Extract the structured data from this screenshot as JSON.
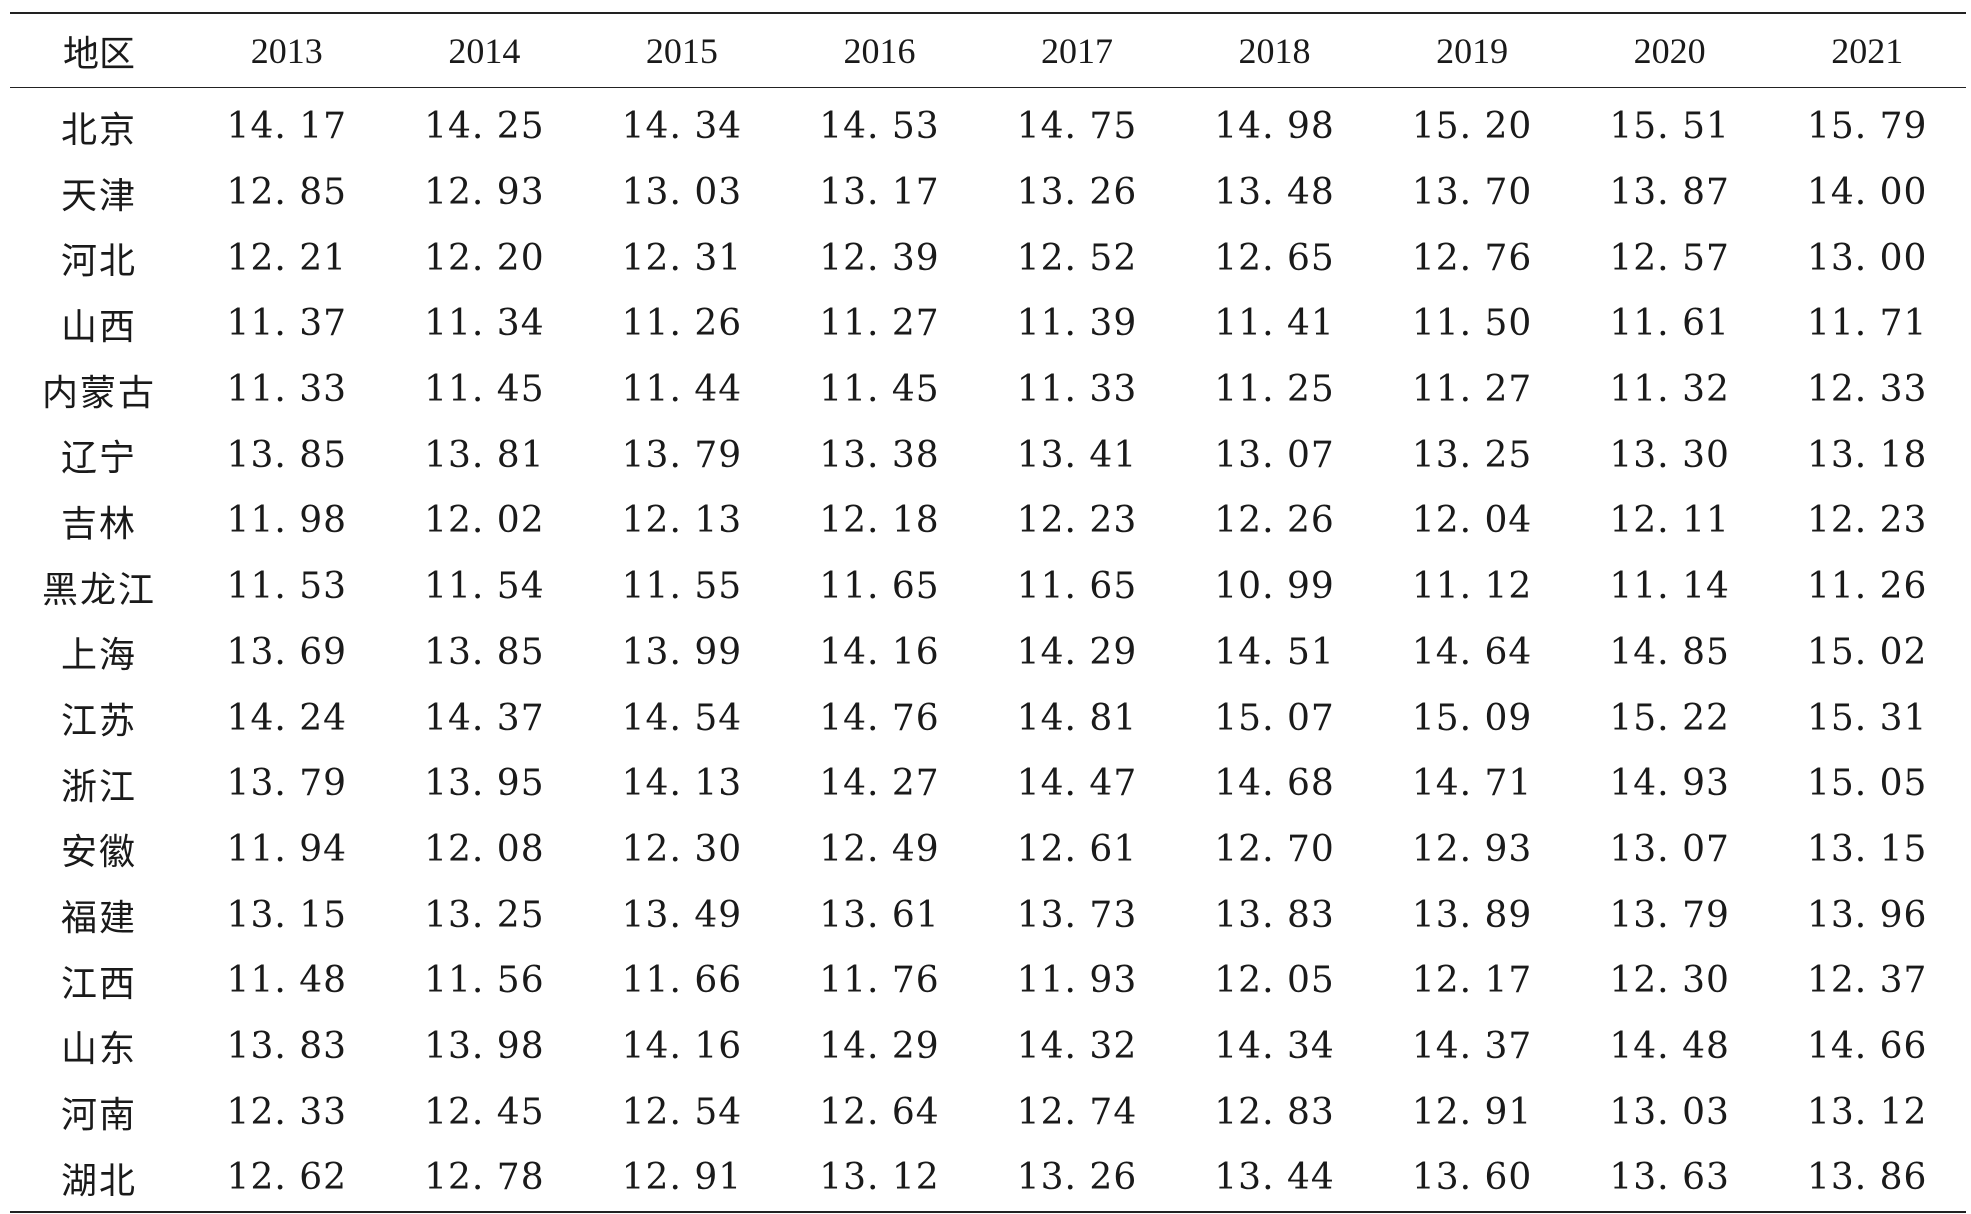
{
  "header": {
    "region_label": "地区",
    "years": [
      "2013",
      "2014",
      "2015",
      "2016",
      "2017",
      "2018",
      "2019",
      "2020",
      "2021"
    ]
  },
  "rows": [
    {
      "region": "北京",
      "values": [
        "14. 17",
        "14. 25",
        "14. 34",
        "14. 53",
        "14. 75",
        "14. 98",
        "15. 20",
        "15. 51",
        "15. 79"
      ]
    },
    {
      "region": "天津",
      "values": [
        "12. 85",
        "12. 93",
        "13. 03",
        "13. 17",
        "13. 26",
        "13. 48",
        "13. 70",
        "13. 87",
        "14. 00"
      ]
    },
    {
      "region": "河北",
      "values": [
        "12. 21",
        "12. 20",
        "12. 31",
        "12. 39",
        "12. 52",
        "12. 65",
        "12. 76",
        "12. 57",
        "13. 00"
      ]
    },
    {
      "region": "山西",
      "values": [
        "11. 37",
        "11. 34",
        "11. 26",
        "11. 27",
        "11. 39",
        "11. 41",
        "11. 50",
        "11. 61",
        "11. 71"
      ]
    },
    {
      "region": "内蒙古",
      "values": [
        "11. 33",
        "11. 45",
        "11. 44",
        "11. 45",
        "11. 33",
        "11. 25",
        "11. 27",
        "11. 32",
        "12. 33"
      ]
    },
    {
      "region": "辽宁",
      "values": [
        "13. 85",
        "13. 81",
        "13. 79",
        "13. 38",
        "13. 41",
        "13. 07",
        "13. 25",
        "13. 30",
        "13. 18"
      ]
    },
    {
      "region": "吉林",
      "values": [
        "11. 98",
        "12. 02",
        "12. 13",
        "12. 18",
        "12. 23",
        "12. 26",
        "12. 04",
        "12. 11",
        "12. 23"
      ]
    },
    {
      "region": "黑龙江",
      "values": [
        "11. 53",
        "11. 54",
        "11. 55",
        "11. 65",
        "11. 65",
        "10. 99",
        "11. 12",
        "11. 14",
        "11. 26"
      ]
    },
    {
      "region": "上海",
      "values": [
        "13. 69",
        "13. 85",
        "13. 99",
        "14. 16",
        "14. 29",
        "14. 51",
        "14. 64",
        "14. 85",
        "15. 02"
      ]
    },
    {
      "region": "江苏",
      "values": [
        "14. 24",
        "14. 37",
        "14. 54",
        "14. 76",
        "14. 81",
        "15. 07",
        "15. 09",
        "15. 22",
        "15. 31"
      ]
    },
    {
      "region": "浙江",
      "values": [
        "13. 79",
        "13. 95",
        "14. 13",
        "14. 27",
        "14. 47",
        "14. 68",
        "14. 71",
        "14. 93",
        "15. 05"
      ]
    },
    {
      "region": "安徽",
      "values": [
        "11. 94",
        "12. 08",
        "12. 30",
        "12. 49",
        "12. 61",
        "12. 70",
        "12. 93",
        "13. 07",
        "13. 15"
      ]
    },
    {
      "region": "福建",
      "values": [
        "13. 15",
        "13. 25",
        "13. 49",
        "13. 61",
        "13. 73",
        "13. 83",
        "13. 89",
        "13. 79",
        "13. 96"
      ]
    },
    {
      "region": "江西",
      "values": [
        "11. 48",
        "11. 56",
        "11. 66",
        "11. 76",
        "11. 93",
        "12. 05",
        "12. 17",
        "12. 30",
        "12. 37"
      ]
    },
    {
      "region": "山东",
      "values": [
        "13. 83",
        "13. 98",
        "14. 16",
        "14. 29",
        "14. 32",
        "14. 34",
        "14. 37",
        "14. 48",
        "14. 66"
      ]
    },
    {
      "region": "河南",
      "values": [
        "12. 33",
        "12. 45",
        "12. 54",
        "12. 64",
        "12. 74",
        "12. 83",
        "12. 91",
        "13. 03",
        "13. 12"
      ]
    },
    {
      "region": "湖北",
      "values": [
        "12. 62",
        "12. 78",
        "12. 91",
        "13. 12",
        "13. 26",
        "13. 44",
        "13. 60",
        "13. 63",
        "13. 86"
      ]
    }
  ]
}
